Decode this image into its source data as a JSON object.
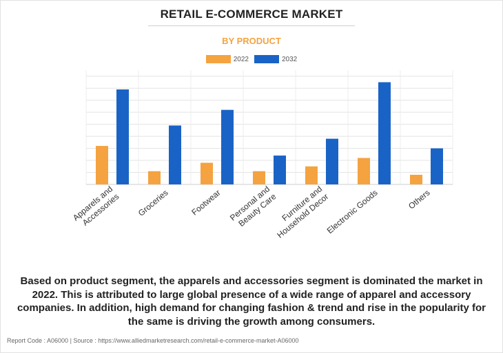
{
  "chart_data": {
    "type": "bar",
    "title": "RETAIL E-COMMERCE MARKET",
    "subtitle": "BY PRODUCT",
    "categories": [
      [
        "Apparels and",
        "Accessories"
      ],
      [
        "Groceries"
      ],
      [
        "Footwear"
      ],
      [
        "Personal and",
        "Beauty Care"
      ],
      [
        "Furniture and",
        "Household Decor"
      ],
      [
        "Electronic Goods"
      ],
      [
        "Others"
      ]
    ],
    "series": [
      {
        "name": "2022",
        "color": "#f4a340",
        "values": [
          32,
          11,
          18,
          11,
          15,
          22,
          8
        ]
      },
      {
        "name": "2032",
        "color": "#1a63c6",
        "values": [
          79,
          49,
          62,
          24,
          38,
          85,
          30
        ]
      }
    ],
    "ylim": [
      0,
      95
    ],
    "yticks": [
      0,
      10,
      20,
      30,
      40,
      50,
      60,
      70,
      80,
      90
    ],
    "grid": true,
    "y_tick_labels_shown": false,
    "legend_position": "top-center"
  },
  "description": "Based on product segment, the apparels and accessories segment is dominated the market in 2022. This is attributed to large global presence of a wide range of apparel and accessory companies. In addition, high demand for changing fashion & trend and rise in the popularity for the same is driving the growth among consumers.",
  "footer": "Report Code : A06000  |  Source : https://www.alliedmarketresearch.com/retail-e-commerce-market-A06000"
}
